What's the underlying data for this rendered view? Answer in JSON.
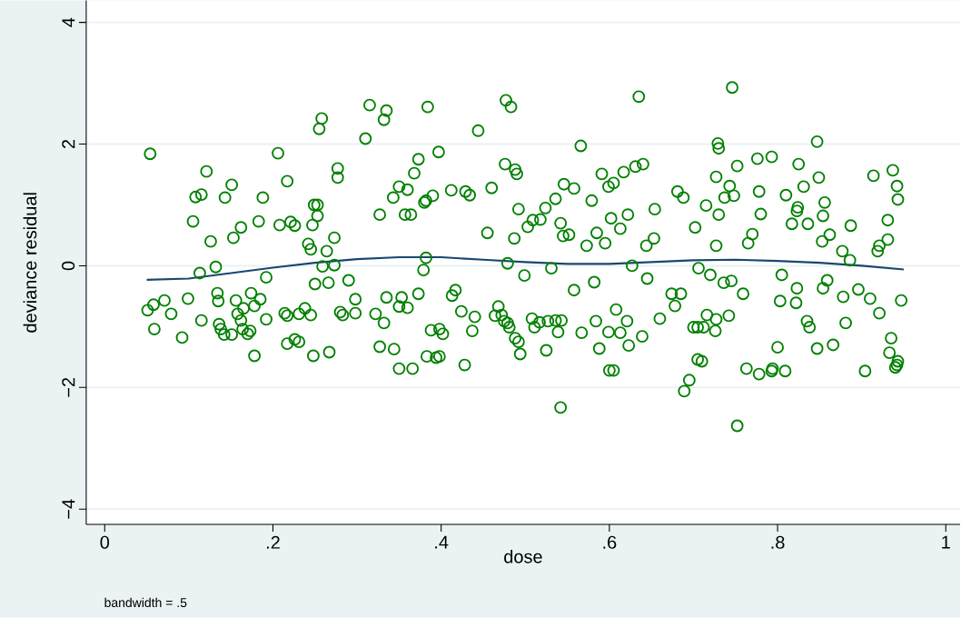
{
  "chart_data": {
    "type": "scatter",
    "xlabel": "dose",
    "ylabel": "deviance residual",
    "annotations": [
      "bandwidth = .5"
    ],
    "xlim": [
      -0.022,
      1.017
    ],
    "ylim": [
      -4.25,
      4.36
    ],
    "xticks": [
      0,
      {
        "value": 0.2,
        "label": ".2"
      },
      {
        "value": 0.4,
        "label": ".4"
      },
      {
        "value": 0.6,
        "label": ".6"
      },
      {
        "value": 0.8,
        "label": ".8"
      },
      1
    ],
    "yticks": [
      {
        "value": -4,
        "label": "−4"
      },
      {
        "value": -2,
        "label": "−2"
      },
      0,
      2,
      4
    ],
    "grid": "y",
    "marker": "circle",
    "series": [
      {
        "color": "#008000",
        "x": [
          0.054,
          0.105,
          0.108,
          0.115,
          0.121,
          0.126,
          0.143,
          0.151,
          0.153,
          0.162,
          0.183,
          0.188,
          0.206,
          0.208,
          0.217,
          0.221,
          0.226,
          0.242,
          0.245,
          0.247,
          0.249,
          0.253,
          0.253,
          0.255,
          0.258,
          0.264,
          0.273,
          0.277,
          0.277,
          0.31,
          0.315,
          0.332,
          0.335,
          0.327,
          0.343,
          0.35,
          0.357,
          0.36,
          0.364,
          0.368,
          0.373,
          0.38,
          0.382,
          0.384,
          0.39,
          0.397,
          0.412,
          0.429,
          0.434,
          0.444,
          0.455,
          0.46,
          0.477,
          0.476,
          0.483,
          0.488,
          0.49,
          0.492,
          0.487,
          0.503,
          0.509,
          0.518,
          0.524,
          0.536,
          0.542,
          0.545,
          0.546,
          0.552,
          0.558,
          0.566,
          0.573,
          0.579,
          0.585,
          0.591,
          0.595,
          0.599,
          0.602,
          0.605,
          0.613,
          0.617,
          0.622,
          0.635,
          0.631,
          0.64,
          0.644,
          0.653,
          0.654,
          0.681,
          0.688,
          0.702,
          0.715,
          0.727,
          0.729,
          0.73,
          0.727,
          0.73,
          0.737,
          0.743,
          0.748,
          0.752,
          0.746,
          0.765,
          0.77,
          0.776,
          0.78,
          0.778,
          0.793,
          0.81,
          0.817,
          0.823,
          0.824,
          0.825,
          0.831,
          0.836,
          0.847,
          0.849,
          0.853,
          0.854,
          0.856,
          0.862,
          0.877,
          0.887,
          0.914,
          0.921,
          0.919,
          0.931,
          0.931,
          0.937,
          0.942,
          0.943,
          0.051,
          0.059,
          0.058,
          0.071,
          0.079,
          0.092,
          0.099,
          0.115,
          0.113,
          0.132,
          0.135,
          0.134,
          0.136,
          0.138,
          0.142,
          0.151,
          0.156,
          0.158,
          0.162,
          0.164,
          0.165,
          0.17,
          0.174,
          0.173,
          0.178,
          0.178,
          0.185,
          0.192,
          0.192,
          0.214,
          0.217,
          0.217,
          0.226,
          0.231,
          0.231,
          0.238,
          0.245,
          0.248,
          0.25,
          0.259,
          0.266,
          0.267,
          0.273,
          0.28,
          0.283,
          0.29,
          0.298,
          0.298,
          0.322,
          0.327,
          0.332,
          0.335,
          0.344,
          0.35,
          0.35,
          0.353,
          0.36,
          0.366,
          0.373,
          0.379,
          0.382,
          0.383,
          0.388,
          0.394,
          0.398,
          0.398,
          0.402,
          0.413,
          0.417,
          0.424,
          0.428,
          0.437,
          0.44,
          0.464,
          0.472,
          0.468,
          0.475,
          0.479,
          0.481,
          0.488,
          0.492,
          0.494,
          0.479,
          0.499,
          0.508,
          0.511,
          0.517,
          0.525,
          0.527,
          0.531,
          0.536,
          0.542,
          0.539,
          0.543,
          0.558,
          0.567,
          0.582,
          0.584,
          0.588,
          0.599,
          0.6,
          0.605,
          0.608,
          0.613,
          0.621,
          0.623,
          0.627,
          0.639,
          0.645,
          0.66,
          0.674,
          0.678,
          0.685,
          0.689,
          0.695,
          0.7,
          0.705,
          0.706,
          0.705,
          0.71,
          0.712,
          0.716,
          0.72,
          0.726,
          0.727,
          0.736,
          0.742,
          0.745,
          0.752,
          0.759,
          0.763,
          0.778,
          0.793,
          0.794,
          0.8,
          0.803,
          0.805,
          0.809,
          0.822,
          0.823,
          0.835,
          0.838,
          0.847,
          0.854,
          0.859,
          0.866,
          0.878,
          0.881,
          0.886,
          0.896,
          0.904,
          0.91,
          0.921,
          0.933,
          0.935,
          0.94,
          0.942,
          0.943,
          0.947
        ],
        "values": [
          1.84,
          0.73,
          1.13,
          1.17,
          1.55,
          0.4,
          1.12,
          1.33,
          0.46,
          0.63,
          0.73,
          1.12,
          1.85,
          0.67,
          1.39,
          0.72,
          0.66,
          0.36,
          0.27,
          0.67,
          1.0,
          1.0,
          0.82,
          2.25,
          2.42,
          0.24,
          0.46,
          1.6,
          1.45,
          2.09,
          2.64,
          2.4,
          2.55,
          0.84,
          1.12,
          1.3,
          0.84,
          1.25,
          0.84,
          1.52,
          1.75,
          1.04,
          1.07,
          2.61,
          1.15,
          1.87,
          1.24,
          1.22,
          1.16,
          2.22,
          0.54,
          1.28,
          2.72,
          1.67,
          2.61,
          1.58,
          1.51,
          0.93,
          0.45,
          0.64,
          0.75,
          0.76,
          0.95,
          1.1,
          0.7,
          0.49,
          1.34,
          0.51,
          1.27,
          1.97,
          0.33,
          1.07,
          0.54,
          1.51,
          0.37,
          1.3,
          0.78,
          1.36,
          0.61,
          1.54,
          0.84,
          2.78,
          1.63,
          1.67,
          0.33,
          0.45,
          0.93,
          1.22,
          1.12,
          0.63,
          0.99,
          0.33,
          2.01,
          1.93,
          1.46,
          0.84,
          1.12,
          1.31,
          1.15,
          1.64,
          2.93,
          0.37,
          0.52,
          1.76,
          0.85,
          1.22,
          1.79,
          1.16,
          0.69,
          0.9,
          0.96,
          1.67,
          1.3,
          0.69,
          2.04,
          1.45,
          0.4,
          0.82,
          1.04,
          0.51,
          0.24,
          0.66,
          1.48,
          0.33,
          0.24,
          0.75,
          0.43,
          1.57,
          1.31,
          1.09,
          -0.73,
          -1.04,
          -0.64,
          -0.57,
          -0.79,
          -1.18,
          -0.54,
          -0.9,
          -0.12,
          -0.02,
          -0.58,
          -0.45,
          -0.96,
          -1.04,
          -1.13,
          -1.13,
          -0.57,
          -0.79,
          -0.9,
          -1.04,
          -0.7,
          -1.12,
          -0.45,
          -1.07,
          -0.66,
          -1.48,
          -0.55,
          -0.88,
          -0.19,
          -0.78,
          -0.82,
          -1.28,
          -1.21,
          -0.79,
          -1.25,
          -0.7,
          -0.81,
          -1.48,
          -0.3,
          -0.01,
          -0.28,
          -1.42,
          0.01,
          -0.76,
          -0.81,
          -0.24,
          -0.55,
          -0.78,
          -0.79,
          -1.33,
          -0.94,
          -0.52,
          -1.37,
          -1.69,
          -0.67,
          -0.52,
          -0.69,
          -1.69,
          -0.46,
          -0.07,
          0.13,
          -1.49,
          -1.06,
          -1.51,
          -1.49,
          -1.04,
          -1.12,
          -0.49,
          -0.4,
          -0.75,
          -1.63,
          -1.07,
          -0.84,
          -0.82,
          -0.81,
          -0.67,
          -0.91,
          -0.94,
          -1.01,
          -1.19,
          -1.25,
          -1.45,
          0.04,
          -0.16,
          -0.87,
          -1.01,
          -0.93,
          -1.39,
          -0.91,
          -0.04,
          -0.9,
          -2.33,
          -1.09,
          -0.9,
          -0.4,
          -1.1,
          -0.27,
          -0.91,
          -1.36,
          -1.09,
          -1.72,
          -1.72,
          -0.72,
          -1.1,
          -0.91,
          -1.31,
          0.0,
          -1.16,
          -0.21,
          -0.87,
          -0.46,
          -0.66,
          -0.46,
          -2.06,
          -1.88,
          -1.01,
          -1.01,
          -0.04,
          -1.54,
          -1.57,
          -1.01,
          -0.81,
          -0.15,
          -1.07,
          -0.88,
          -0.28,
          -0.82,
          -0.25,
          -2.63,
          -0.46,
          -1.69,
          -1.78,
          -1.73,
          -1.69,
          -1.34,
          -0.58,
          -0.15,
          -1.73,
          -0.61,
          -0.37,
          -0.91,
          -1.01,
          -1.36,
          -0.37,
          -0.24,
          -1.3,
          -0.51,
          -0.94,
          0.09,
          -0.39,
          -1.73,
          -0.54,
          -0.78,
          -1.43,
          -1.19,
          -1.67,
          -1.63,
          -1.57,
          -0.57
        ]
      },
      {
        "type": "line",
        "color": "#1a476f",
        "marker": "none",
        "x": [
          0.05,
          0.1,
          0.15,
          0.2,
          0.25,
          0.3,
          0.35,
          0.4,
          0.45,
          0.5,
          0.55,
          0.6,
          0.65,
          0.7,
          0.75,
          0.8,
          0.85,
          0.9,
          0.95
        ],
        "values": [
          -0.23,
          -0.21,
          -0.12,
          -0.03,
          0.05,
          0.11,
          0.14,
          0.14,
          0.1,
          0.06,
          0.03,
          0.03,
          0.06,
          0.09,
          0.1,
          0.08,
          0.05,
          0.0,
          -0.06
        ]
      }
    ]
  }
}
